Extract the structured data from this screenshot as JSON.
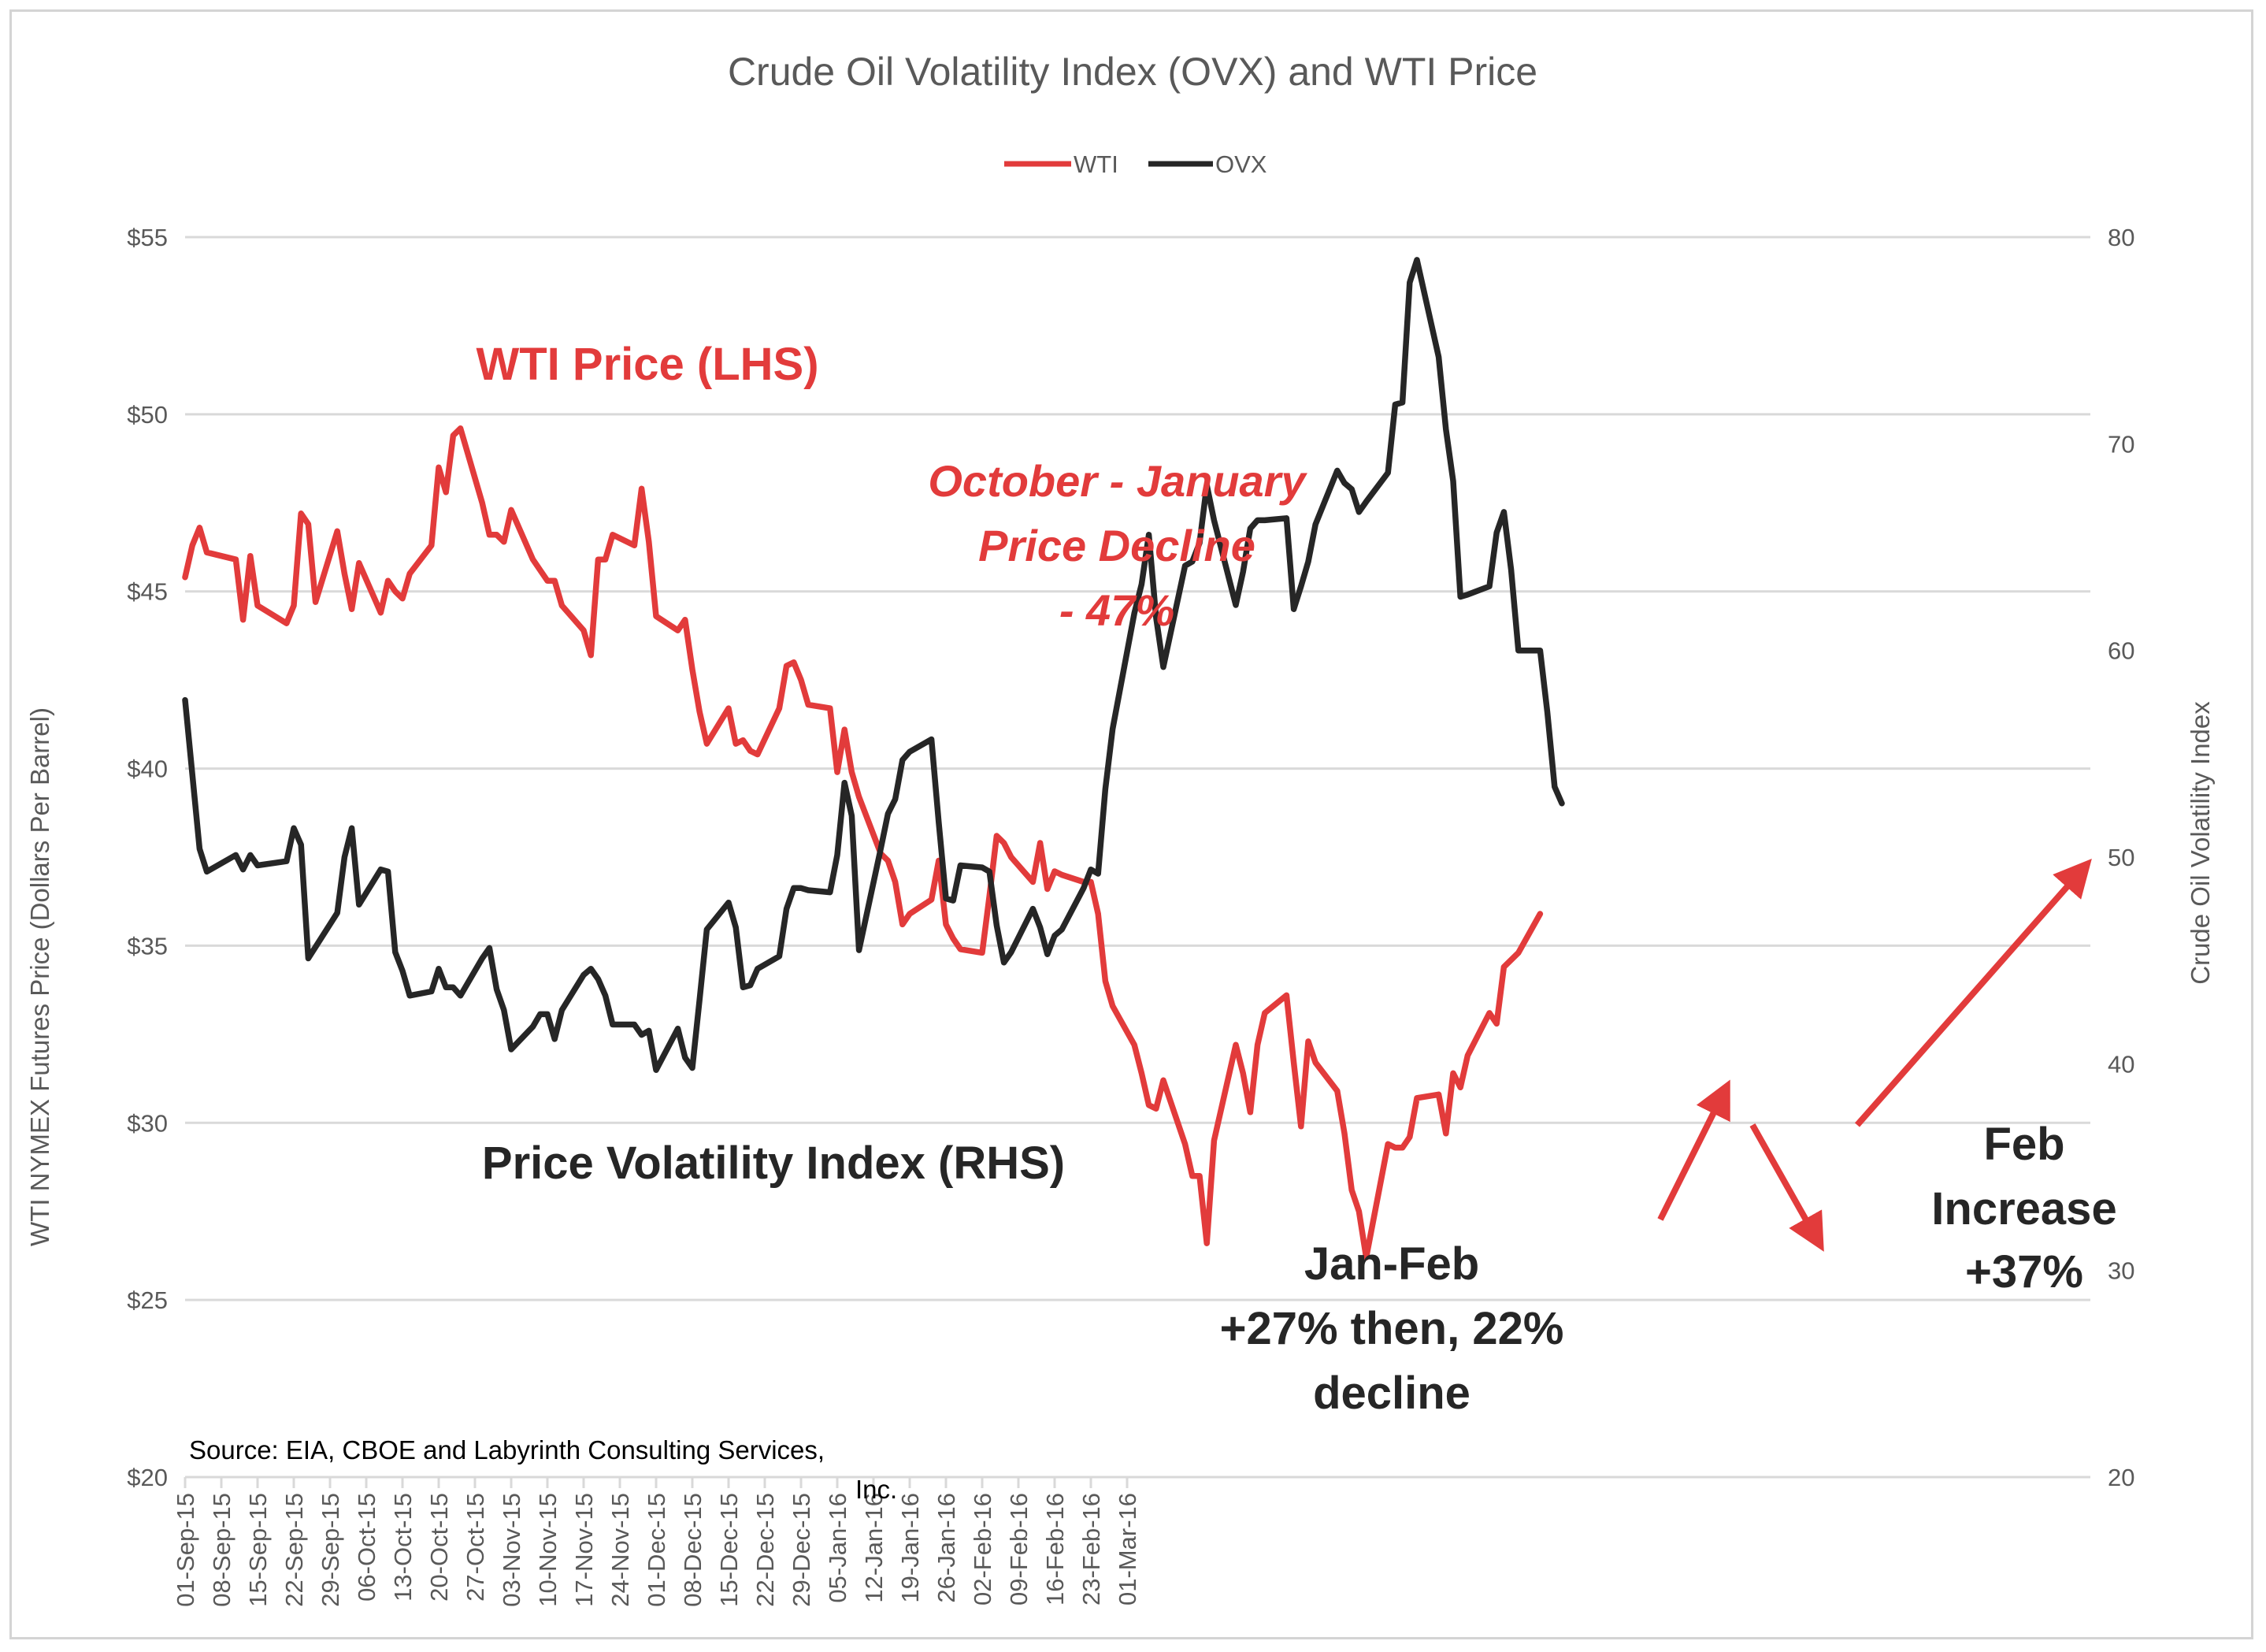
{
  "chart_data": {
    "type": "line",
    "title": "Crude Oil Volatility Index (OVX) and WTI Price",
    "ylabel_left": "WTI NYMEX Futures Price (Dollars Per Barrel)",
    "ylabel_right": "Crude Oil Volatility Index",
    "ylim_left": [
      20,
      55
    ],
    "ylim_right": [
      20,
      80
    ],
    "y_ticks_left": [
      "$20",
      "$25",
      "$30",
      "$35",
      "$40",
      "$45",
      "$50",
      "$55"
    ],
    "y_ticks_right": [
      "20",
      "30",
      "40",
      "50",
      "60",
      "70",
      "80"
    ],
    "x_ticks": [
      "01-Sep-15",
      "08-Sep-15",
      "15-Sep-15",
      "22-Sep-15",
      "29-Sep-15",
      "06-Oct-15",
      "13-Oct-15",
      "20-Oct-15",
      "27-Oct-15",
      "03-Nov-15",
      "10-Nov-15",
      "17-Nov-15",
      "24-Nov-15",
      "01-Dec-15",
      "08-Dec-15",
      "15-Dec-15",
      "22-Dec-15",
      "29-Dec-15",
      "05-Jan-16",
      "12-Jan-16",
      "19-Jan-16",
      "26-Jan-16",
      "02-Feb-16",
      "09-Feb-16",
      "16-Feb-16",
      "23-Feb-16",
      "01-Mar-16"
    ],
    "legend": [
      "WTI",
      "OVX"
    ],
    "legend_position": "top-center",
    "grid": true,
    "series": [
      {
        "name": "WTI",
        "axis": "left",
        "color": "#e23b3b",
        "points": [
          [
            0,
            45.4
          ],
          [
            1,
            46.3
          ],
          [
            2,
            46.8
          ],
          [
            3,
            46.1
          ],
          [
            7,
            45.9
          ],
          [
            8,
            44.2
          ],
          [
            9,
            46
          ],
          [
            10,
            44.6
          ],
          [
            14,
            44.1
          ],
          [
            15,
            44.6
          ],
          [
            16,
            47.2
          ],
          [
            17,
            46.9
          ],
          [
            18,
            44.7
          ],
          [
            21,
            46.7
          ],
          [
            22,
            45.5
          ],
          [
            23,
            44.5
          ],
          [
            24,
            45.8
          ],
          [
            27,
            44.4
          ],
          [
            28,
            45.3
          ],
          [
            29,
            45
          ],
          [
            30,
            44.8
          ],
          [
            31,
            45.5
          ],
          [
            34,
            46.3
          ],
          [
            35,
            48.5
          ],
          [
            36,
            47.8
          ],
          [
            37,
            49.4
          ],
          [
            38,
            49.6
          ],
          [
            41,
            47.5
          ],
          [
            42,
            46.6
          ],
          [
            43,
            46.6
          ],
          [
            44,
            46.4
          ],
          [
            45,
            47.3
          ],
          [
            48,
            45.9
          ],
          [
            49,
            45.6
          ],
          [
            50,
            45.3
          ],
          [
            51,
            45.3
          ],
          [
            52,
            44.6
          ],
          [
            55,
            43.9
          ],
          [
            56,
            43.2
          ],
          [
            57,
            45.9
          ],
          [
            58,
            45.9
          ],
          [
            59,
            46.6
          ],
          [
            62,
            46.3
          ],
          [
            63,
            47.9
          ],
          [
            64,
            46.4
          ],
          [
            65,
            44.3
          ],
          [
            68,
            43.9
          ],
          [
            69,
            44.2
          ],
          [
            70,
            42.8
          ],
          [
            71,
            41.6
          ],
          [
            72,
            40.7
          ],
          [
            75,
            41.7
          ],
          [
            76,
            40.7
          ],
          [
            77,
            40.8
          ],
          [
            78,
            40.5
          ],
          [
            79,
            40.4
          ],
          [
            82,
            41.7
          ],
          [
            83,
            42.9
          ],
          [
            84,
            43
          ],
          [
            85,
            42.5
          ],
          [
            86,
            41.8
          ],
          [
            89,
            41.7
          ],
          [
            90,
            39.9
          ],
          [
            91,
            41.1
          ],
          [
            92,
            39.9
          ],
          [
            93,
            39.2
          ],
          [
            96,
            37.6
          ],
          [
            97,
            37.4
          ],
          [
            98,
            36.8
          ],
          [
            99,
            35.6
          ],
          [
            100,
            35.9
          ],
          [
            103,
            36.3
          ],
          [
            104,
            37.4
          ],
          [
            105,
            35.6
          ],
          [
            106,
            35.2
          ],
          [
            107,
            34.9
          ],
          [
            110,
            34.8
          ],
          [
            111,
            36.4
          ],
          [
            112,
            38.1
          ],
          [
            113,
            37.9
          ],
          [
            114,
            37.5
          ],
          [
            117,
            36.8
          ],
          [
            118,
            37.9
          ],
          [
            119,
            36.6
          ],
          [
            120,
            37.1
          ],
          [
            121,
            37
          ],
          [
            124,
            36.8
          ],
          [
            125,
            36.8
          ],
          [
            126,
            35.9
          ],
          [
            127,
            34
          ],
          [
            128,
            33.3
          ],
          [
            131,
            32.2
          ],
          [
            132,
            31.4
          ],
          [
            133,
            30.5
          ],
          [
            134,
            30.4
          ],
          [
            135,
            31.2
          ],
          [
            138,
            29.4
          ],
          [
            139,
            28.5
          ],
          [
            140,
            28.5
          ],
          [
            141,
            26.6
          ],
          [
            142,
            29.5
          ],
          [
            145,
            32.2
          ],
          [
            146,
            31.4
          ],
          [
            147,
            30.3
          ],
          [
            148,
            32.2
          ],
          [
            149,
            33.1
          ],
          [
            152,
            33.6
          ],
          [
            153,
            31.7
          ],
          [
            154,
            29.9
          ],
          [
            155,
            32.3
          ],
          [
            156,
            31.7
          ],
          [
            159,
            30.9
          ],
          [
            160,
            29.7
          ],
          [
            161,
            28.1
          ],
          [
            162,
            27.5
          ],
          [
            163,
            26.2
          ],
          [
            166,
            29.4
          ],
          [
            167,
            29.3
          ],
          [
            168,
            29.3
          ],
          [
            169,
            29.6
          ],
          [
            170,
            30.7
          ],
          [
            173,
            30.8
          ],
          [
            174,
            29.7
          ],
          [
            175,
            31.4
          ],
          [
            176,
            31
          ],
          [
            177,
            31.9
          ],
          [
            180,
            33.1
          ],
          [
            181,
            32.8
          ],
          [
            182,
            34.4
          ],
          [
            183,
            34.6
          ],
          [
            184,
            34.8
          ],
          [
            187,
            35.9
          ]
        ]
      },
      {
        "name": "OVX",
        "axis": "right",
        "color": "#262626",
        "points": [
          [
            0,
            57.6
          ],
          [
            1,
            54
          ],
          [
            2,
            50.4
          ],
          [
            3,
            49.3
          ],
          [
            7,
            50.1
          ],
          [
            8,
            49.4
          ],
          [
            9,
            50.1
          ],
          [
            10,
            49.6
          ],
          [
            14,
            49.8
          ],
          [
            15,
            51.4
          ],
          [
            16,
            50.6
          ],
          [
            17,
            45.1
          ],
          [
            21,
            47.3
          ],
          [
            22,
            50
          ],
          [
            23,
            51.4
          ],
          [
            24,
            47.7
          ],
          [
            27,
            49.4
          ],
          [
            28,
            49.3
          ],
          [
            29,
            45.4
          ],
          [
            30,
            44.5
          ],
          [
            31,
            43.3
          ],
          [
            34,
            43.5
          ],
          [
            35,
            44.6
          ],
          [
            36,
            43.7
          ],
          [
            37,
            43.7
          ],
          [
            38,
            43.3
          ],
          [
            41,
            45.1
          ],
          [
            42,
            45.6
          ],
          [
            43,
            43.6
          ],
          [
            44,
            42.6
          ],
          [
            45,
            40.7
          ],
          [
            48,
            41.8
          ],
          [
            49,
            42.4
          ],
          [
            50,
            42.4
          ],
          [
            51,
            41.2
          ],
          [
            52,
            42.6
          ],
          [
            55,
            44.3
          ],
          [
            56,
            44.6
          ],
          [
            57,
            44.1
          ],
          [
            58,
            43.3
          ],
          [
            59,
            41.9
          ],
          [
            62,
            41.9
          ],
          [
            63,
            41.4
          ],
          [
            64,
            41.6
          ],
          [
            65,
            39.7
          ],
          [
            68,
            41.7
          ],
          [
            69,
            40.3
          ],
          [
            70,
            39.8
          ],
          [
            71,
            43.1
          ],
          [
            72,
            46.5
          ],
          [
            75,
            47.8
          ],
          [
            76,
            46.6
          ],
          [
            77,
            43.7
          ],
          [
            78,
            43.8
          ],
          [
            79,
            44.6
          ],
          [
            82,
            45.2
          ],
          [
            83,
            47.5
          ],
          [
            84,
            48.5
          ],
          [
            85,
            48.5
          ],
          [
            86,
            48.4
          ],
          [
            89,
            48.3
          ],
          [
            90,
            50.1
          ],
          [
            91,
            53.6
          ],
          [
            92,
            52
          ],
          [
            93,
            45.5
          ],
          [
            96,
            50.4
          ],
          [
            97,
            52.1
          ],
          [
            98,
            52.8
          ],
          [
            99,
            54.7
          ],
          [
            100,
            55.1
          ],
          [
            103,
            55.7
          ],
          [
            104,
            51.7
          ],
          [
            105,
            48
          ],
          [
            106,
            47.9
          ],
          [
            107,
            49.6
          ],
          [
            110,
            49.5
          ],
          [
            111,
            49.3
          ],
          [
            112,
            46.7
          ],
          [
            113,
            44.9
          ],
          [
            114,
            45.4
          ],
          [
            117,
            47.5
          ],
          [
            118,
            46.6
          ],
          [
            119,
            45.3
          ],
          [
            120,
            46.2
          ],
          [
            121,
            46.5
          ],
          [
            124,
            48.5
          ],
          [
            125,
            49.4
          ],
          [
            126,
            49.2
          ],
          [
            127,
            53.3
          ],
          [
            128,
            56.2
          ],
          [
            131,
            61.8
          ],
          [
            132,
            63.2
          ],
          [
            133,
            65.6
          ],
          [
            134,
            61.6
          ],
          [
            135,
            59.2
          ],
          [
            138,
            64.1
          ],
          [
            139,
            64.3
          ],
          [
            140,
            65.2
          ],
          [
            141,
            68
          ],
          [
            142,
            66.3
          ],
          [
            145,
            62.2
          ],
          [
            146,
            63.8
          ],
          [
            147,
            65.9
          ],
          [
            148,
            66.3
          ],
          [
            149,
            66.3
          ],
          [
            152,
            66.4
          ],
          [
            153,
            62
          ],
          [
            154,
            63.1
          ],
          [
            155,
            64.3
          ],
          [
            156,
            66.1
          ],
          [
            159,
            68.7
          ],
          [
            160,
            68.1
          ],
          [
            161,
            67.8
          ],
          [
            162,
            66.7
          ],
          [
            163,
            67.2
          ],
          [
            166,
            68.6
          ],
          [
            167,
            71.9
          ],
          [
            168,
            72
          ],
          [
            169,
            77.8
          ],
          [
            170,
            78.9
          ],
          [
            173,
            74.2
          ],
          [
            174,
            70.7
          ],
          [
            175,
            68.2
          ],
          [
            176,
            62.6
          ],
          [
            177,
            62.7
          ],
          [
            180,
            63.1
          ],
          [
            181,
            65.7
          ],
          [
            182,
            66.7
          ],
          [
            183,
            63.9
          ],
          [
            184,
            60
          ],
          [
            187,
            60
          ],
          [
            188,
            57
          ],
          [
            189,
            53.4
          ],
          [
            190,
            52.6
          ]
        ]
      }
    ],
    "annotations": {
      "wti_label": "WTI Price (LHS)",
      "ovx_label": "Price Volatility Index (RHS)",
      "decline_line1": "October - January",
      "decline_line2": "Price Decline",
      "decline_line3": "- 47%",
      "janfeb_line1": "Jan-Feb",
      "janfeb_line2": "+27% then, 22%",
      "janfeb_line3": "decline",
      "feb_line1": "Feb",
      "feb_line2": "Increase",
      "feb_line3": "+37%",
      "source_line1": "Source:  EIA, CBOE and Labyrinth Consulting  Services,",
      "source_line2": "Inc."
    }
  }
}
